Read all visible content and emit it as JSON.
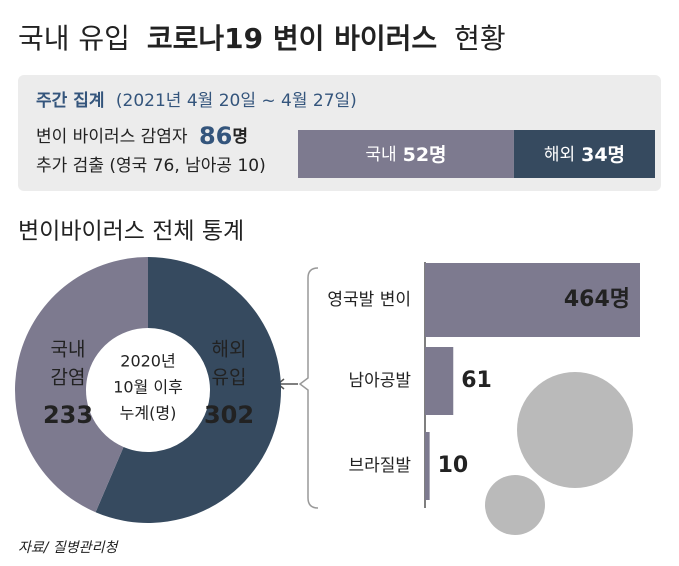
{
  "title": [
    "국내 유입",
    "코로나19 변이 바이러스",
    "현황"
  ],
  "source": "자료/ 질병관리청",
  "chart_data": [
    {
      "type": "stacked_bar",
      "title": "주간 집계",
      "subtitle": "(2021년 4월 20일 ~ 4월 27일)",
      "headline": {
        "prefix": "변이 바이러스 감염자",
        "value": 86,
        "unit": "명"
      },
      "note": "추가 검출 (영국 76, 남아공 10)",
      "series": [
        {
          "name": "국내",
          "color": "#7d7a8f",
          "values": [
            52
          ],
          "value_labels": [
            "52명"
          ]
        },
        {
          "name": "해외",
          "color": "#364a5f",
          "values": [
            34
          ],
          "value_labels": [
            "34명"
          ]
        }
      ]
    },
    {
      "type": "donut",
      "title": "변이바이러스 전체 통계",
      "center_label": [
        "2020년",
        "10월 이후",
        "누계(명)"
      ],
      "categories": [
        [
          "국내",
          "감염"
        ],
        [
          "해외",
          "유입"
        ]
      ],
      "values": [
        233,
        302
      ],
      "colors": [
        "#7d7a8f",
        "#364a5f"
      ]
    },
    {
      "type": "bar",
      "categories": [
        "영국발 변이",
        "남아공발",
        "브라질발"
      ],
      "values": [
        464,
        61,
        10
      ],
      "value_labels": [
        "464명",
        "61",
        "10"
      ],
      "color": "#7d7a8f"
    }
  ]
}
